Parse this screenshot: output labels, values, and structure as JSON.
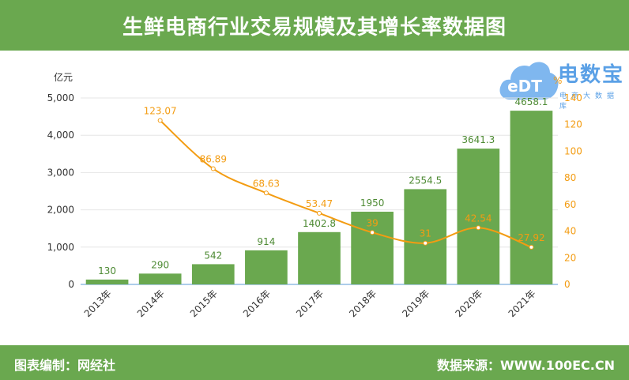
{
  "header": {
    "title": "生鲜电商行业交易规模及其增长率数据图"
  },
  "footer": {
    "left": "图表编制：网经社",
    "right": "数据来源：WWW.100EC.CN"
  },
  "logo": {
    "name": "电数宝",
    "mark": "eDT",
    "tagline": "电商大数据库"
  },
  "colors": {
    "brand": "#6aa84f",
    "bar": "#6aa84f",
    "line": "#f39c12",
    "logo": "#5aa0e6"
  },
  "chart_data": {
    "type": "bar",
    "categories": [
      "2013年",
      "2014年",
      "2015年",
      "2016年",
      "2017年",
      "2018年",
      "2019年",
      "2020年",
      "2021年"
    ],
    "series": [
      {
        "type": "bar",
        "axis": "left",
        "values": [
          130,
          290,
          542,
          914,
          1402.8,
          1950,
          2554.5,
          3641.3,
          4658.1
        ],
        "labels": [
          "130",
          "290",
          "542",
          "914",
          "1402.8",
          "1950",
          "2554.5",
          "3641.3",
          "4658.1"
        ]
      },
      {
        "type": "line",
        "axis": "right",
        "values": [
          null,
          123.07,
          86.89,
          68.63,
          53.47,
          39,
          31,
          42.54,
          27.92
        ],
        "labels": [
          "",
          "123.07",
          "86.89",
          "68.63",
          "53.47",
          "39",
          "31",
          "42.54",
          "27.92"
        ]
      }
    ],
    "left_axis": {
      "unit": "亿元",
      "ylim": [
        0,
        5000
      ],
      "ticks": [
        "0",
        "1,000",
        "2,000",
        "3,000",
        "4,000",
        "5,000"
      ],
      "tick_values": [
        0,
        1000,
        2000,
        3000,
        4000,
        5000
      ]
    },
    "right_axis": {
      "unit": "%",
      "ylim": [
        0,
        140
      ],
      "ticks": [
        "0",
        "20",
        "40",
        "60",
        "80",
        "100",
        "120",
        "140"
      ],
      "tick_values": [
        0,
        20,
        40,
        60,
        80,
        100,
        120,
        140
      ]
    },
    "grid": true
  }
}
